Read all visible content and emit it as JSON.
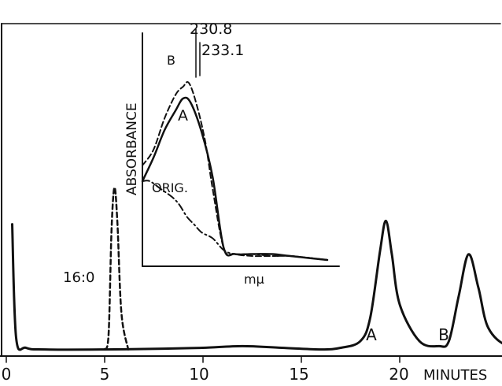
{
  "chart_data": [
    {
      "type": "line",
      "title": "",
      "xlabel": "MINUTES",
      "ylabel": "",
      "xlim": [
        0,
        29.5
      ],
      "x_ticks": [
        "0",
        "5",
        "10",
        "15",
        "20"
      ],
      "grid": false,
      "peak_labels": [
        "16:0",
        "A",
        "B"
      ],
      "series": [
        {
          "style": "solid",
          "points": [
            [
              0.3,
              0.78
            ],
            [
              0.5,
              0.1
            ],
            [
              1.0,
              0.04
            ],
            [
              2,
              0.03
            ],
            [
              5,
              0.03
            ],
            [
              8,
              0.035
            ],
            [
              10,
              0.04
            ],
            [
              12,
              0.05
            ],
            [
              14,
              0.04
            ],
            [
              16,
              0.03
            ],
            [
              17,
              0.04
            ],
            [
              18,
              0.08
            ],
            [
              18.5,
              0.22
            ],
            [
              19.0,
              0.62
            ],
            [
              19.3,
              0.8
            ],
            [
              19.6,
              0.6
            ],
            [
              20.0,
              0.3
            ],
            [
              21,
              0.08
            ],
            [
              22,
              0.05
            ],
            [
              22.5,
              0.08
            ],
            [
              23.0,
              0.35
            ],
            [
              23.5,
              0.6
            ],
            [
              24.0,
              0.4
            ],
            [
              24.5,
              0.16
            ],
            [
              25.5,
              0.05
            ],
            [
              27,
              0.03
            ],
            [
              29.5,
              0.03
            ]
          ]
        },
        {
          "style": "dashed",
          "points": [
            [
              5.0,
              0.03
            ],
            [
              5.2,
              0.12
            ],
            [
              5.35,
              0.75
            ],
            [
              5.5,
              1.0
            ],
            [
              5.65,
              0.78
            ],
            [
              5.85,
              0.25
            ],
            [
              6.2,
              0.03
            ]
          ]
        }
      ]
    },
    {
      "type": "line",
      "title": "",
      "xlabel": "mμ",
      "ylabel": "ABSORBANCE",
      "grid": false,
      "annotations": [
        "230.8",
        "233.1"
      ],
      "series": [
        {
          "name": "B",
          "style": "dashed",
          "points": [
            [
              0,
              0.48
            ],
            [
              0.06,
              0.56
            ],
            [
              0.12,
              0.72
            ],
            [
              0.18,
              0.84
            ],
            [
              0.22,
              0.88
            ],
            [
              0.25,
              0.9
            ],
            [
              0.29,
              0.8
            ],
            [
              0.34,
              0.6
            ],
            [
              0.38,
              0.36
            ],
            [
              0.44,
              0.06
            ],
            [
              0.5,
              0.03
            ],
            [
              0.6,
              0.02
            ],
            [
              0.7,
              0.02
            ],
            [
              0.8,
              0.02
            ],
            [
              1,
              0.0
            ]
          ]
        },
        {
          "name": "A",
          "style": "solid",
          "points": [
            [
              0,
              0.4
            ],
            [
              0.06,
              0.52
            ],
            [
              0.12,
              0.66
            ],
            [
              0.18,
              0.76
            ],
            [
              0.22,
              0.82
            ],
            [
              0.26,
              0.8
            ],
            [
              0.32,
              0.65
            ],
            [
              0.38,
              0.42
            ],
            [
              0.44,
              0.06
            ],
            [
              0.5,
              0.03
            ],
            [
              0.6,
              0.03
            ],
            [
              0.7,
              0.03
            ],
            [
              0.8,
              0.02
            ],
            [
              1,
              0.0
            ]
          ]
        },
        {
          "name": "ORIG.",
          "style": "dash-dot",
          "points": [
            [
              0,
              0.4
            ],
            [
              0.04,
              0.4
            ],
            [
              0.1,
              0.36
            ],
            [
              0.16,
              0.32
            ],
            [
              0.2,
              0.28
            ],
            [
              0.24,
              0.22
            ],
            [
              0.28,
              0.18
            ],
            [
              0.32,
              0.14
            ],
            [
              0.38,
              0.11
            ],
            [
              0.44,
              0.05
            ],
            [
              0.5,
              0.03
            ],
            [
              0.6,
              0.03
            ],
            [
              0.7,
              0.02
            ],
            [
              0.8,
              0.02
            ],
            [
              1,
              0.0
            ]
          ]
        }
      ]
    }
  ]
}
